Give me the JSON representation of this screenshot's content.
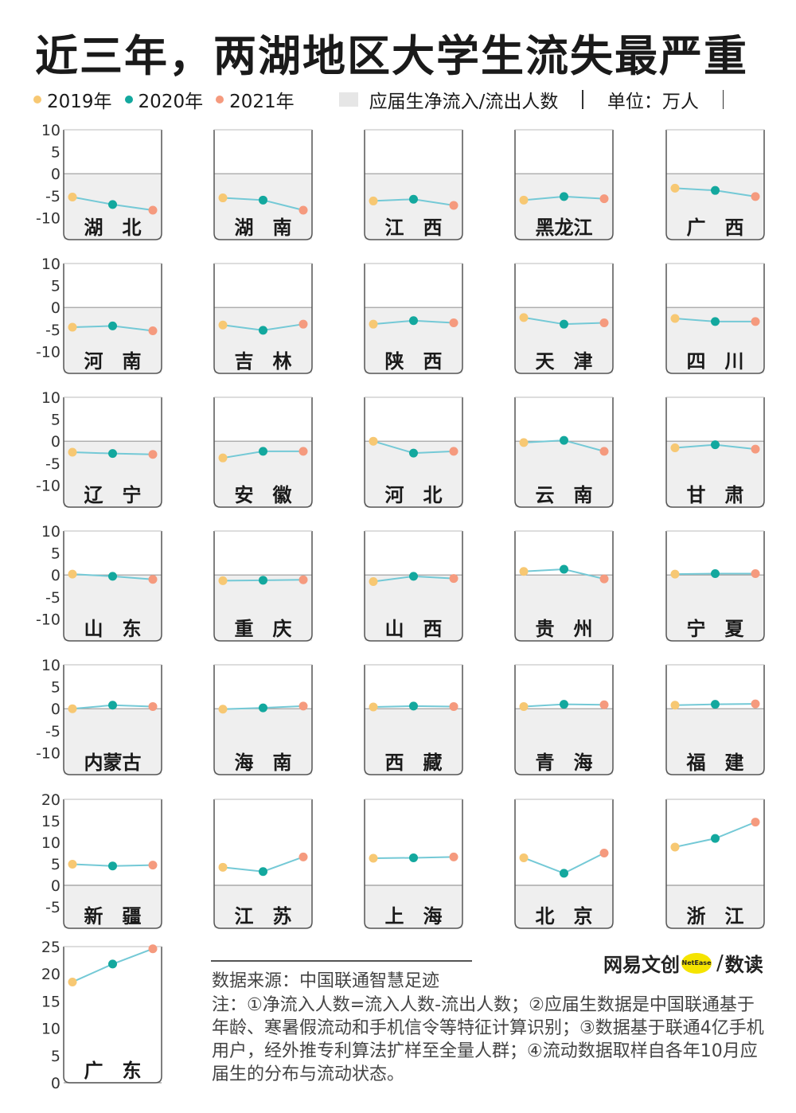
{
  "title": "近三年，两湖地区大学生流失最严重",
  "legend": {
    "years": [
      {
        "label": "2019年",
        "color": "#f7c873"
      },
      {
        "label": "2020年",
        "color": "#13a89e"
      },
      {
        "label": "2021年",
        "color": "#f59a7e"
      }
    ],
    "area_label": "应届生净流入/流出人数",
    "area_color": "#e6e6e6",
    "unit_label": "单位：万人"
  },
  "colors": {
    "line": "#74c9d6",
    "area": "#efefef",
    "frame": "#555555"
  },
  "chart_data": {
    "type": "line",
    "x": [
      "2019年",
      "2020年",
      "2021年"
    ],
    "rows": [
      {
        "ylim": [
          -15,
          10
        ],
        "ticks": [
          "10",
          "5",
          "0",
          "-5",
          "-10"
        ],
        "tick_values": [
          10,
          5,
          0,
          -5,
          -10
        ]
      },
      {
        "ylim": [
          -15,
          10
        ],
        "ticks": [
          "10",
          "5",
          "0",
          "-5",
          "-10"
        ],
        "tick_values": [
          10,
          5,
          0,
          -5,
          -10
        ]
      },
      {
        "ylim": [
          -15,
          10
        ],
        "ticks": [
          "10",
          "5",
          "0",
          "-5",
          "-10"
        ],
        "tick_values": [
          10,
          5,
          0,
          -5,
          -10
        ]
      },
      {
        "ylim": [
          -15,
          10
        ],
        "ticks": [
          "10",
          "5",
          "0",
          "-5",
          "-10"
        ],
        "tick_values": [
          10,
          5,
          0,
          -5,
          -10
        ]
      },
      {
        "ylim": [
          -15,
          10
        ],
        "ticks": [
          "10",
          "5",
          "0",
          "-5",
          "-10"
        ],
        "tick_values": [
          10,
          5,
          0,
          -5,
          -10
        ]
      },
      {
        "ylim": [
          -10,
          20
        ],
        "ticks": [
          "20",
          "15",
          "10",
          "5",
          "0",
          "-5"
        ],
        "tick_values": [
          20,
          15,
          10,
          5,
          0,
          -5
        ]
      },
      {
        "ylim": [
          0,
          25
        ],
        "ticks": [
          "25",
          "20",
          "15",
          "10",
          "5",
          "0"
        ],
        "tick_values": [
          25,
          20,
          15,
          10,
          5,
          0
        ]
      }
    ],
    "panels": [
      {
        "name": "湖　北",
        "row": 0,
        "col": 0,
        "values": [
          -5.3,
          -7,
          -8.3
        ]
      },
      {
        "name": "湖　南",
        "row": 0,
        "col": 1,
        "values": [
          -5.5,
          -6,
          -8.3
        ]
      },
      {
        "name": "江　西",
        "row": 0,
        "col": 2,
        "values": [
          -6.2,
          -5.8,
          -7.2
        ]
      },
      {
        "name": "黑龙江",
        "row": 0,
        "col": 3,
        "values": [
          -6,
          -5.2,
          -5.7
        ]
      },
      {
        "name": "广　西",
        "row": 0,
        "col": 4,
        "values": [
          -3.3,
          -3.8,
          -5.2
        ]
      },
      {
        "name": "河　南",
        "row": 1,
        "col": 0,
        "values": [
          -4.5,
          -4.2,
          -5.3
        ]
      },
      {
        "name": "吉　林",
        "row": 1,
        "col": 1,
        "values": [
          -4,
          -5.2,
          -3.8
        ]
      },
      {
        "name": "陕　西",
        "row": 1,
        "col": 2,
        "values": [
          -3.8,
          -3,
          -3.5
        ]
      },
      {
        "name": "天　津",
        "row": 1,
        "col": 3,
        "values": [
          -2.3,
          -3.8,
          -3.5
        ]
      },
      {
        "name": "四　川",
        "row": 1,
        "col": 4,
        "values": [
          -2.5,
          -3.2,
          -3.2
        ]
      },
      {
        "name": "辽　宁",
        "row": 2,
        "col": 0,
        "values": [
          -2.5,
          -2.8,
          -3
        ]
      },
      {
        "name": "安　徽",
        "row": 2,
        "col": 1,
        "values": [
          -3.8,
          -2.3,
          -2.3
        ]
      },
      {
        "name": "河　北",
        "row": 2,
        "col": 2,
        "values": [
          0,
          -2.7,
          -2.3
        ]
      },
      {
        "name": "云　南",
        "row": 2,
        "col": 3,
        "values": [
          -0.3,
          0.2,
          -2.3
        ]
      },
      {
        "name": "甘　肃",
        "row": 2,
        "col": 4,
        "values": [
          -1.5,
          -0.8,
          -1.8
        ]
      },
      {
        "name": "山　东",
        "row": 3,
        "col": 0,
        "values": [
          0.2,
          -0.3,
          -1
        ]
      },
      {
        "name": "重　庆",
        "row": 3,
        "col": 1,
        "values": [
          -1.3,
          -1.2,
          -1.1
        ]
      },
      {
        "name": "山　西",
        "row": 3,
        "col": 2,
        "values": [
          -1.5,
          -0.3,
          -0.8
        ]
      },
      {
        "name": "贵　州",
        "row": 3,
        "col": 3,
        "values": [
          0.8,
          1.3,
          -0.9
        ]
      },
      {
        "name": "宁　夏",
        "row": 3,
        "col": 4,
        "values": [
          0.2,
          0.3,
          0.3
        ]
      },
      {
        "name": "内蒙古",
        "row": 4,
        "col": 0,
        "values": [
          0,
          0.8,
          0.5
        ]
      },
      {
        "name": "海　南",
        "row": 4,
        "col": 1,
        "values": [
          -0.1,
          0.2,
          0.6
        ]
      },
      {
        "name": "西　藏",
        "row": 4,
        "col": 2,
        "values": [
          0.4,
          0.6,
          0.5
        ]
      },
      {
        "name": "青　海",
        "row": 4,
        "col": 3,
        "values": [
          0.5,
          1,
          0.9
        ]
      },
      {
        "name": "福　建",
        "row": 4,
        "col": 4,
        "values": [
          0.8,
          1,
          1.1
        ]
      },
      {
        "name": "新　疆",
        "row": 5,
        "col": 0,
        "values": [
          4.9,
          4.5,
          4.7
        ]
      },
      {
        "name": "江　苏",
        "row": 5,
        "col": 1,
        "values": [
          4.2,
          3.2,
          6.6
        ]
      },
      {
        "name": "上　海",
        "row": 5,
        "col": 2,
        "values": [
          6.3,
          6.4,
          6.6
        ]
      },
      {
        "name": "北　京",
        "row": 5,
        "col": 3,
        "values": [
          6.4,
          2.8,
          7.5
        ]
      },
      {
        "name": "浙　江",
        "row": 5,
        "col": 4,
        "values": [
          8.9,
          10.9,
          14.7
        ]
      },
      {
        "name": "广　东",
        "row": 6,
        "col": 0,
        "values": [
          18.5,
          21.8,
          24.6
        ]
      }
    ]
  },
  "footer": {
    "source": "数据来源：中国联通智慧足迹",
    "note": "注：①净流入人数=流入人数-流出人数；②应届生数据是中国联通基于年龄、寒暑假流动和手机信令等特征计算识别；③数据基于联通4亿手机用户，经外推专利算法扩样至全量人群；④流动数据取样自各年10月应届生的分布与流动状态。"
  },
  "brand": {
    "name": "网易文创",
    "badge": "NetEase",
    "slash": "/",
    "sub": "数读"
  }
}
